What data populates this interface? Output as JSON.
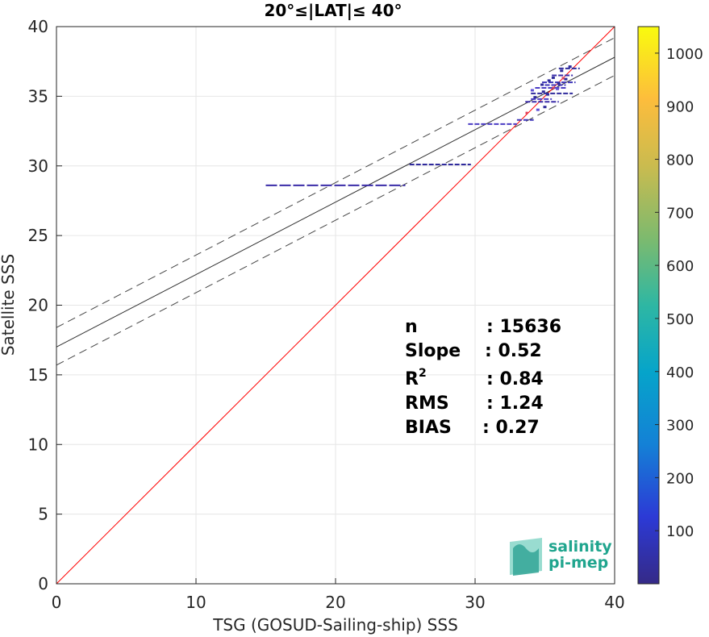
{
  "chart_data": {
    "type": "scatter",
    "title": "20°≤|LAT|≤ 40°",
    "xlabel": "TSG (GOSUD-Sailing-ship) SSS",
    "ylabel": "Satellite SSS",
    "xlim": [
      0,
      40
    ],
    "ylim": [
      0,
      40
    ],
    "xticks": [
      "0",
      "10",
      "20",
      "30",
      "40"
    ],
    "yticks": [
      "0",
      "5",
      "10",
      "15",
      "20",
      "25",
      "30",
      "35",
      "40"
    ],
    "grid": true,
    "colorbar": {
      "min": 0,
      "max": 1050,
      "ticks": [
        "100",
        "200",
        "300",
        "400",
        "500",
        "600",
        "700",
        "800",
        "900",
        "1000"
      ],
      "tick_values": [
        100,
        200,
        300,
        400,
        500,
        600,
        700,
        800,
        900,
        1000
      ],
      "colormap": "parula"
    },
    "lines": {
      "identity": {
        "slope": 1,
        "intercept": 0,
        "color": "#ff0000"
      },
      "regression": {
        "slope": 0.52,
        "intercept": 17.0,
        "color": "#000000"
      },
      "upper_bound": {
        "slope": 0.52,
        "intercept": 18.4,
        "style": "dashed"
      },
      "lower_bound": {
        "slope": 0.52,
        "intercept": 15.7,
        "style": "dashed"
      }
    },
    "clusters": [
      {
        "x": [
          15.0,
          25.0
        ],
        "y": 28.6
      },
      {
        "x": [
          25.3,
          29.7
        ],
        "y": 30.1
      },
      {
        "x": [
          29.5,
          33.0
        ],
        "y": 33.0
      },
      {
        "x": [
          33.0,
          34.2
        ],
        "y": 33.3
      },
      {
        "x": [
          33.6,
          36.0
        ],
        "y": 34.6
      },
      {
        "x": [
          34.0,
          37.0
        ],
        "y": 35.2
      },
      {
        "x": [
          34.3,
          36.5
        ],
        "y": 35.6
      },
      {
        "x": [
          34.8,
          37.2
        ],
        "y": 36.0
      },
      {
        "x": [
          35.5,
          37.0
        ],
        "y": 36.5
      },
      {
        "x": [
          36.0,
          37.5
        ],
        "y": 37.0
      },
      {
        "x": [
          34.0,
          35.5
        ],
        "y": 34.8
      },
      {
        "x": [
          35.0,
          36.5
        ],
        "y": 35.8
      }
    ],
    "stats": [
      {
        "label": "n",
        "value": ": 15636"
      },
      {
        "label": "Slope",
        "value": ": 0.52"
      },
      {
        "label": "R",
        "sup": "2",
        "value": ": 0.84"
      },
      {
        "label": "RMS",
        "value": ": 1.24"
      },
      {
        "label": "BIAS",
        "value": ": 0.27"
      }
    ]
  },
  "logo": {
    "line1": "salinity",
    "line2": "pi-mep"
  }
}
